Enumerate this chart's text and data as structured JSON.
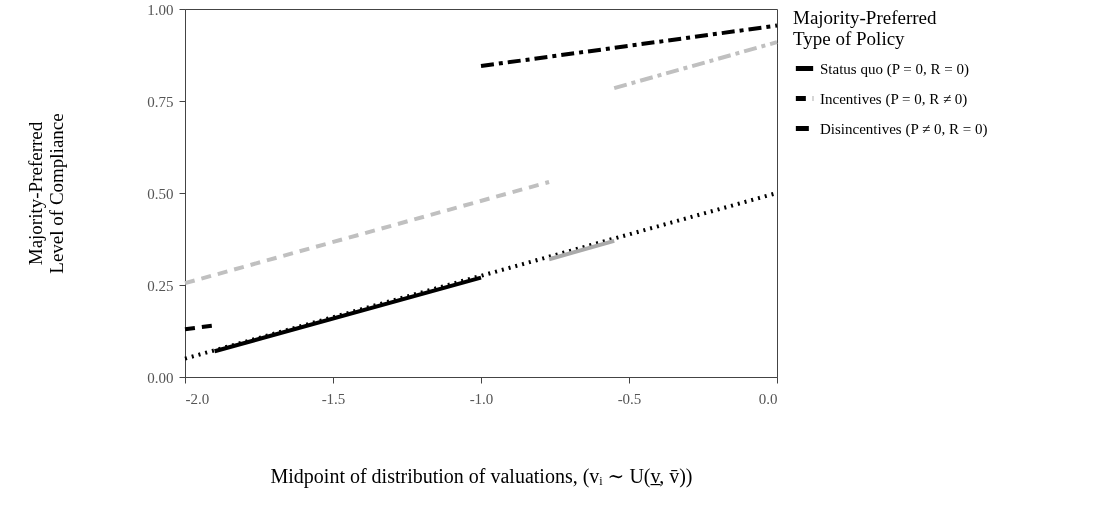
{
  "chart_data": {
    "type": "line",
    "xlabel": "Midpoint of distribution of valuations, (vᵢ ∼ U(v̲, v̄))",
    "ylabel": "Majority-Preferred\nLevel of Compliance",
    "legend_title": "Majority-Preferred\nType of Policy",
    "xlim": [
      -2.0,
      0.0
    ],
    "xticks": [
      {
        "value": -2.0,
        "label": "-2.0"
      },
      {
        "value": -1.5,
        "label": "-1.5"
      },
      {
        "value": -1.0,
        "label": "-1.0"
      },
      {
        "value": -0.5,
        "label": "-0.5"
      },
      {
        "value": 0.0,
        "label": "0.0"
      }
    ],
    "ylim": [
      0,
      1
    ],
    "yticks": [
      {
        "value": 0,
        "label": "0.00"
      },
      {
        "value": 0.25,
        "label": "0.25"
      },
      {
        "value": 0.5,
        "label": "0.50"
      },
      {
        "value": 0.75,
        "label": "0.75"
      },
      {
        "value": 1,
        "label": "1.00"
      }
    ],
    "grid": false,
    "legend": "right",
    "marker": "none",
    "series": [
      {
        "color": "#000000",
        "line_style": "dotted",
        "x": [
          -2.0,
          0.0
        ],
        "values": [
          0.05,
          0.5
        ]
      },
      {
        "color": "#c0c0c0",
        "line_style": "dashed",
        "x": [
          -2.0,
          -0.77
        ],
        "values": [
          0.255,
          0.53
        ]
      },
      {
        "color": "#c0c0c0",
        "line_style": "dashdot",
        "x": [
          -0.55,
          0.0
        ],
        "values": [
          0.785,
          0.91
        ]
      },
      {
        "color": "#aaaaaa",
        "line_style": "solid",
        "x": [
          -0.77,
          -0.55
        ],
        "values": [
          0.32,
          0.37
        ]
      },
      {
        "name": "Status quo (P = 0, R = 0)",
        "color": "#000000",
        "line_style": "solid",
        "x": [
          -1.9,
          -1.0
        ],
        "values": [
          0.07,
          0.27
        ]
      },
      {
        "name": "Incentives (P = 0, R ≠ 0)",
        "color": "#000000",
        "line_style": "dashed",
        "x": [
          -2.0,
          -1.9
        ],
        "values": [
          0.13,
          0.14
        ]
      },
      {
        "name": "Disincentives (P ≠ 0, R = 0)",
        "color": "#000000",
        "line_style": "dashdot",
        "x": [
          -1.0,
          0.0
        ],
        "values": [
          0.845,
          0.955
        ]
      }
    ]
  }
}
